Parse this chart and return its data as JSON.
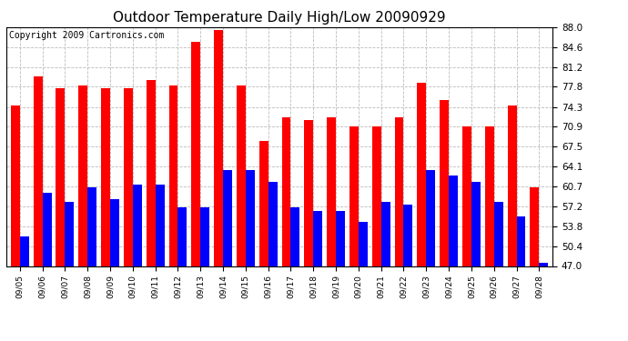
{
  "title": "Outdoor Temperature Daily High/Low 20090929",
  "copyright": "Copyright 2009 Cartronics.com",
  "dates": [
    "09/05",
    "09/06",
    "09/07",
    "09/08",
    "09/09",
    "09/10",
    "09/11",
    "09/12",
    "09/13",
    "09/14",
    "09/15",
    "09/16",
    "09/17",
    "09/18",
    "09/19",
    "09/20",
    "09/21",
    "09/22",
    "09/23",
    "09/24",
    "09/25",
    "09/26",
    "09/27",
    "09/28"
  ],
  "highs": [
    74.5,
    79.5,
    77.5,
    78.0,
    77.5,
    77.5,
    79.0,
    78.0,
    85.5,
    87.5,
    78.0,
    68.5,
    72.5,
    72.0,
    72.5,
    71.0,
    71.0,
    72.5,
    78.5,
    75.5,
    71.0,
    71.0,
    74.5,
    60.5
  ],
  "lows": [
    52.0,
    59.5,
    58.0,
    60.5,
    58.5,
    61.0,
    61.0,
    57.0,
    57.0,
    63.5,
    63.5,
    61.5,
    57.0,
    56.5,
    56.5,
    54.5,
    58.0,
    57.5,
    63.5,
    62.5,
    61.5,
    58.0,
    55.5,
    47.5
  ],
  "high_color": "#ff0000",
  "low_color": "#0000ff",
  "bg_color": "#ffffff",
  "plot_bg_color": "#ffffff",
  "grid_color": "#bbbbbb",
  "ymin": 47.0,
  "ymax": 88.0,
  "yticks": [
    47.0,
    50.4,
    53.8,
    57.2,
    60.7,
    64.1,
    67.5,
    70.9,
    74.3,
    77.8,
    81.2,
    84.6,
    88.0
  ],
  "title_fontsize": 11,
  "copyright_fontsize": 7,
  "bar_width": 0.4
}
